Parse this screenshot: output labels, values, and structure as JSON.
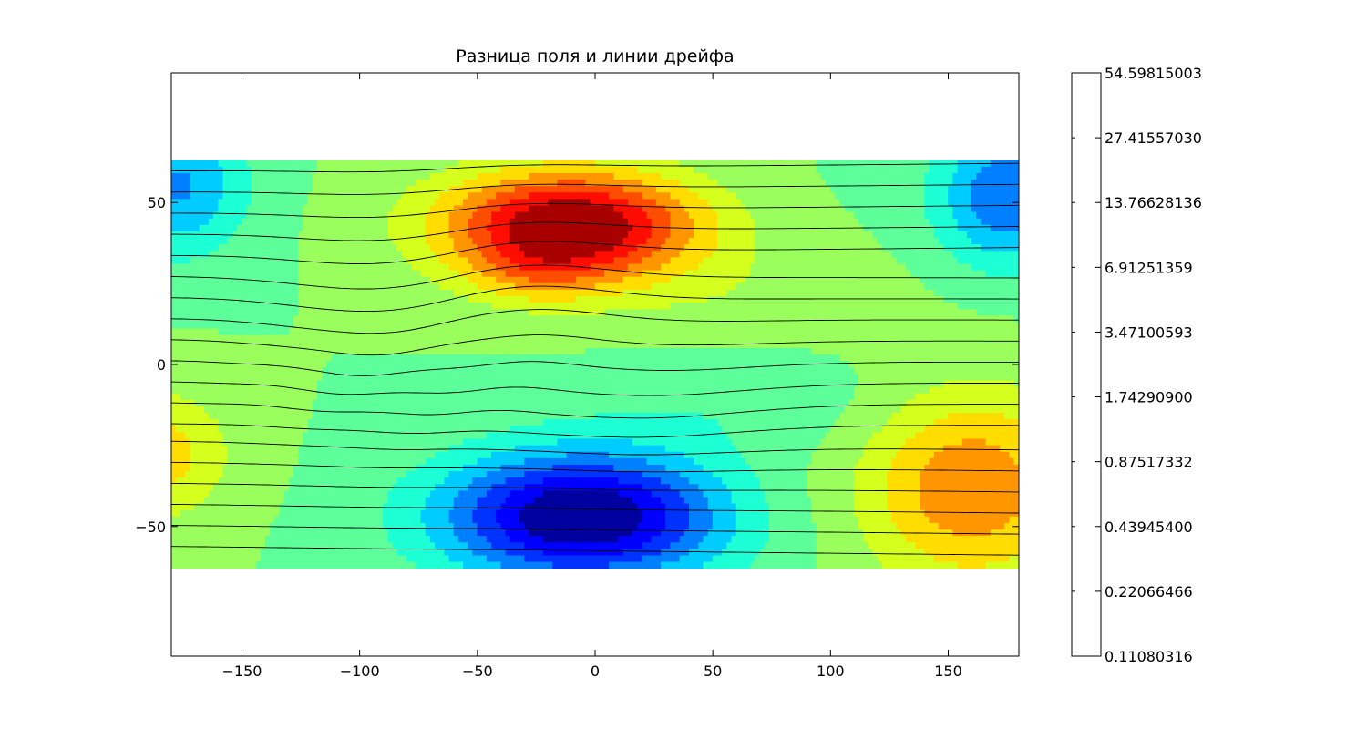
{
  "chart_data": {
    "type": "filled-contour",
    "title": "Разница поля и линии дрейфа",
    "xlabel": "",
    "ylabel": "",
    "xlim": [
      -180,
      180
    ],
    "ylim": [
      -90,
      90
    ],
    "data_extent": {
      "lat_min": -63,
      "lat_max": 63,
      "lon_min": -180,
      "lon_max": 180
    },
    "x_ticks": [
      -150,
      -100,
      -50,
      0,
      50,
      100,
      150
    ],
    "x_tick_labels": [
      "−150",
      "−100",
      "−50",
      "0",
      "50",
      "100",
      "150"
    ],
    "y_ticks": [
      -50,
      0,
      50
    ],
    "y_tick_labels": [
      "−50",
      "0",
      "50"
    ],
    "colormap": "jet",
    "level_colors": [
      "#00009f",
      "#0000ff",
      "#0032ff",
      "#0080ff",
      "#00ccff",
      "#1dffd5",
      "#5cff99",
      "#9aff5c",
      "#d5ff1d",
      "#ffdd00",
      "#ff9600",
      "#ff4d00",
      "#ff0d00",
      "#a80000"
    ],
    "features": [
      {
        "kind": "max",
        "lon": -10,
        "lat": 45,
        "peak_level": 13
      },
      {
        "kind": "min",
        "lon": -5,
        "lat": -48,
        "peak_level": 0
      }
    ],
    "colorbar": {
      "tick_labels": [
        "54.59815003",
        "27.41557030",
        "13.76628136",
        "6.91251359",
        "3.47100593",
        "1.74290900",
        "0.87517332",
        "0.43945400",
        "0.22066466",
        "0.11080316"
      ]
    },
    "drift_lines": {
      "count": 20,
      "lat_spacing": 6.5,
      "color": "#000000"
    }
  }
}
